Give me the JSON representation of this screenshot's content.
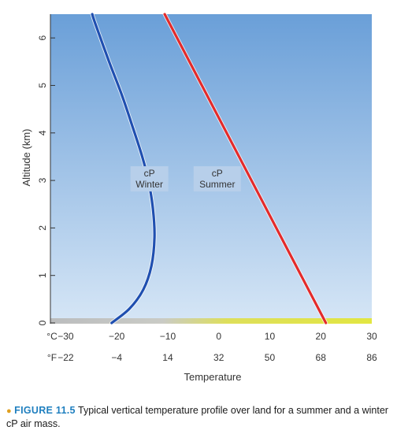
{
  "chart_data": {
    "type": "line",
    "xlabel": "Temperature",
    "ylabel": "Altitude (km)",
    "xlim": [
      -33,
      30
    ],
    "ylim": [
      0,
      6.5
    ],
    "x_unit_label": "°C",
    "x_alt_unit_label": "°F",
    "x_ticks": [
      -30,
      -20,
      -10,
      0,
      10,
      20,
      30
    ],
    "x_ticks_f": [
      "−22",
      "−4",
      "14",
      "32",
      "50",
      "68",
      "86"
    ],
    "x_tick_labels": [
      "−30",
      "−20",
      "−10",
      "0",
      "10",
      "20",
      "30"
    ],
    "y_ticks": [
      0,
      1,
      2,
      3,
      4,
      5,
      6
    ],
    "y_tick_labels": [
      "0",
      "1",
      "2",
      "3",
      "4",
      "5",
      "6"
    ],
    "grid": false,
    "series": [
      {
        "name": "cP Winter",
        "label_line1": "cP",
        "label_line2": "Winter",
        "color": "#1f4fb0",
        "points": [
          [
            -21,
            0
          ],
          [
            -17.5,
            0.3
          ],
          [
            -14.8,
            0.7
          ],
          [
            -13.2,
            1.2
          ],
          [
            -12.6,
            1.8
          ],
          [
            -12.9,
            2.4
          ],
          [
            -13.8,
            3.0
          ],
          [
            -15.0,
            3.5
          ],
          [
            -16.8,
            4.1
          ],
          [
            -19.0,
            4.8
          ],
          [
            -21.5,
            5.5
          ],
          [
            -24.2,
            6.3
          ],
          [
            -24.8,
            6.5
          ]
        ]
      },
      {
        "name": "cP Summer",
        "label_line1": "cP",
        "label_line2": "Summer",
        "color": "#e32b2b",
        "points": [
          [
            21,
            0
          ],
          [
            -10.6,
            6.5
          ]
        ]
      }
    ]
  },
  "caption": {
    "figure_number": "FIGURE 11.5",
    "text": "Typical vertical temperature profile over land for a summer and a winter cP air mass."
  },
  "colors": {
    "sky_top": "#6a9fd8",
    "sky_bottom": "#d6e6f6",
    "ground": "#e3e62e"
  }
}
